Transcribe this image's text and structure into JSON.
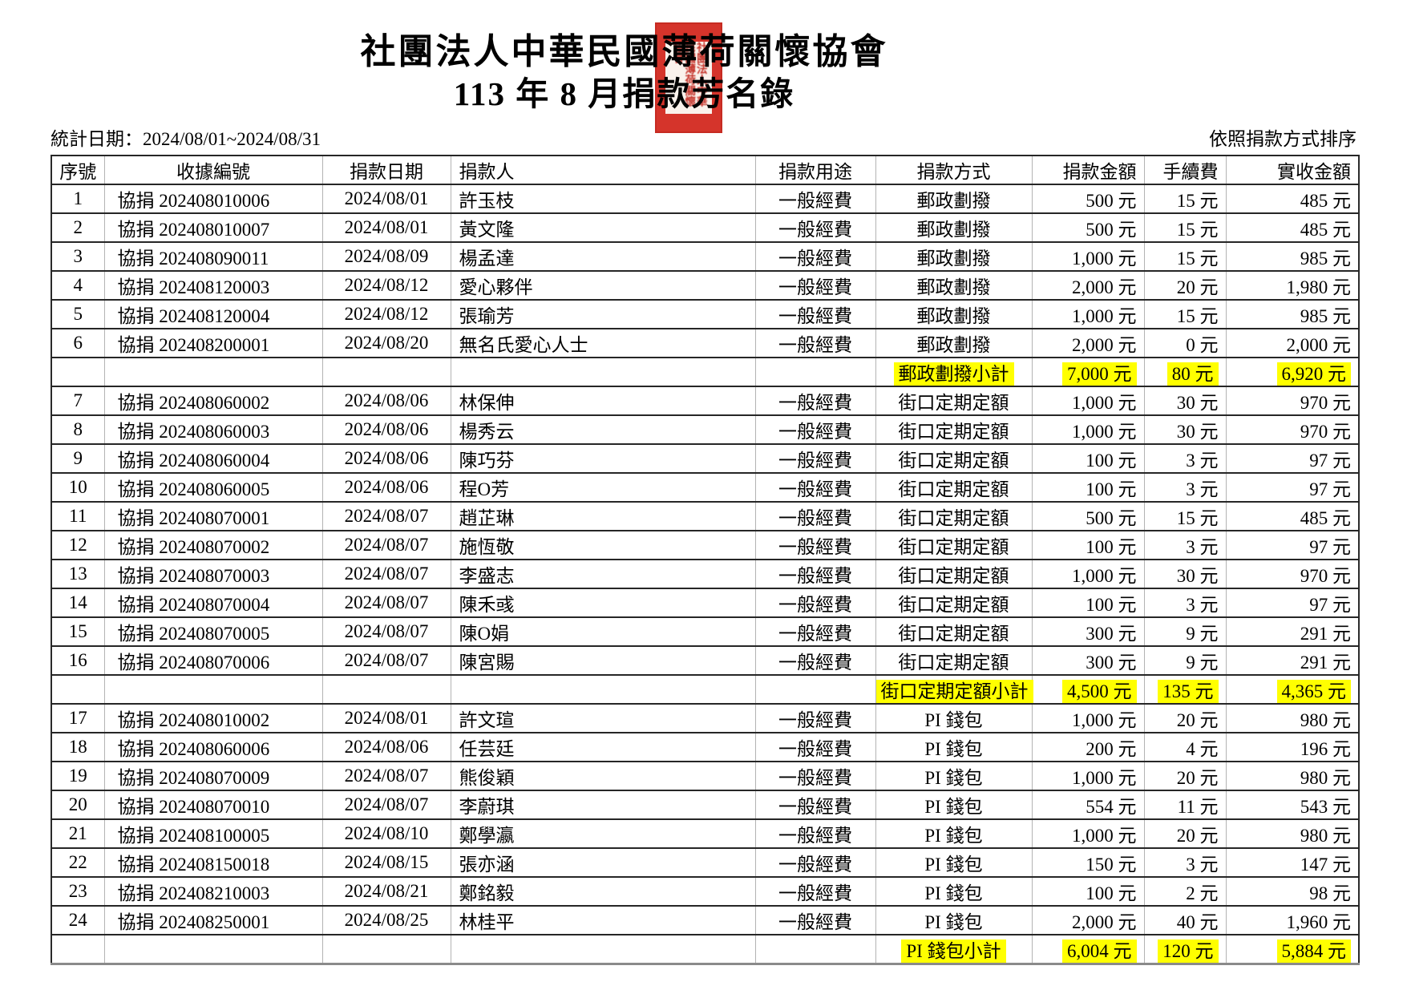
{
  "header": {
    "title": "社團法人中華民國薄荷關懷協會",
    "subtitle": "113 年 8 月捐款芳名錄",
    "stat_date": "統計日期：2024/08/01~2024/08/31",
    "sort_note": "依照捐款方式排序",
    "seal_text": "社團法人中華民國薄荷關懷協會"
  },
  "colors": {
    "subtotal_highlight": "#ffff00",
    "seal_red": "#d5342b"
  },
  "table": {
    "columns": [
      {
        "key": "no",
        "label": "序號",
        "align": "ac"
      },
      {
        "key": "receipt",
        "label": "收據編號",
        "align": "ac"
      },
      {
        "key": "date",
        "label": "捐款日期",
        "align": "ac"
      },
      {
        "key": "donor",
        "label": "捐款人",
        "align": "al2"
      },
      {
        "key": "purpose",
        "label": "捐款用途",
        "align": "ac"
      },
      {
        "key": "method",
        "label": "捐款方式",
        "align": "ac"
      },
      {
        "key": "amount",
        "label": "捐款金額",
        "align": "ar"
      },
      {
        "key": "fee",
        "label": "手續費",
        "align": "ar"
      },
      {
        "key": "net",
        "label": "實收金額",
        "align": "ar"
      }
    ],
    "value_aligns": {
      "no": "ac",
      "receipt": "al",
      "date": "ac",
      "donor": "al2",
      "purpose": "ac",
      "method": "ac",
      "amount": "ar",
      "fee": "ar",
      "net": "ar"
    },
    "rows": [
      {
        "no": "1",
        "receipt": "協捐 202408010006",
        "date": "2024/08/01",
        "donor": "許玉枝",
        "purpose": "一般經費",
        "method": "郵政劃撥",
        "amount": "500 元",
        "fee": "15 元",
        "net": "485 元"
      },
      {
        "no": "2",
        "receipt": "協捐 202408010007",
        "date": "2024/08/01",
        "donor": "黃文隆",
        "purpose": "一般經費",
        "method": "郵政劃撥",
        "amount": "500 元",
        "fee": "15 元",
        "net": "485 元"
      },
      {
        "no": "3",
        "receipt": "協捐 202408090011",
        "date": "2024/08/09",
        "donor": "楊孟達",
        "purpose": "一般經費",
        "method": "郵政劃撥",
        "amount": "1,000 元",
        "fee": "15 元",
        "net": "985 元"
      },
      {
        "no": "4",
        "receipt": "協捐 202408120003",
        "date": "2024/08/12",
        "donor": "愛心夥伴",
        "purpose": "一般經費",
        "method": "郵政劃撥",
        "amount": "2,000 元",
        "fee": "20 元",
        "net": "1,980 元"
      },
      {
        "no": "5",
        "receipt": "協捐 202408120004",
        "date": "2024/08/12",
        "donor": "張瑜芳",
        "purpose": "一般經費",
        "method": "郵政劃撥",
        "amount": "1,000 元",
        "fee": "15 元",
        "net": "985 元"
      },
      {
        "no": "6",
        "receipt": "協捐 202408200001",
        "date": "2024/08/20",
        "donor": "無名氏愛心人士",
        "purpose": "一般經費",
        "method": "郵政劃撥",
        "amount": "2,000 元",
        "fee": "0 元",
        "net": "2,000 元"
      },
      {
        "subtotal": true,
        "label": "郵政劃撥小計",
        "amount": "7,000 元",
        "fee": "80 元",
        "net": "6,920 元"
      },
      {
        "no": "7",
        "receipt": "協捐 202408060002",
        "date": "2024/08/06",
        "donor": "林保伸",
        "purpose": "一般經費",
        "method": "街口定期定額",
        "amount": "1,000 元",
        "fee": "30 元",
        "net": "970 元"
      },
      {
        "no": "8",
        "receipt": "協捐 202408060003",
        "date": "2024/08/06",
        "donor": "楊秀云",
        "purpose": "一般經費",
        "method": "街口定期定額",
        "amount": "1,000 元",
        "fee": "30 元",
        "net": "970 元"
      },
      {
        "no": "9",
        "receipt": "協捐 202408060004",
        "date": "2024/08/06",
        "donor": "陳巧芬",
        "purpose": "一般經費",
        "method": "街口定期定額",
        "amount": "100 元",
        "fee": "3 元",
        "net": "97 元"
      },
      {
        "no": "10",
        "receipt": "協捐 202408060005",
        "date": "2024/08/06",
        "donor": "程O芳",
        "purpose": "一般經費",
        "method": "街口定期定額",
        "amount": "100 元",
        "fee": "3 元",
        "net": "97 元"
      },
      {
        "no": "11",
        "receipt": "協捐 202408070001",
        "date": "2024/08/07",
        "donor": "趙芷琳",
        "purpose": "一般經費",
        "method": "街口定期定額",
        "amount": "500 元",
        "fee": "15 元",
        "net": "485 元"
      },
      {
        "no": "12",
        "receipt": "協捐 202408070002",
        "date": "2024/08/07",
        "donor": "施恆敬",
        "purpose": "一般經費",
        "method": "街口定期定額",
        "amount": "100 元",
        "fee": "3 元",
        "net": "97 元"
      },
      {
        "no": "13",
        "receipt": "協捐 202408070003",
        "date": "2024/08/07",
        "donor": "李盛志",
        "purpose": "一般經費",
        "method": "街口定期定額",
        "amount": "1,000 元",
        "fee": "30 元",
        "net": "970 元"
      },
      {
        "no": "14",
        "receipt": "協捐 202408070004",
        "date": "2024/08/07",
        "donor": "陳禾彧",
        "purpose": "一般經費",
        "method": "街口定期定額",
        "amount": "100 元",
        "fee": "3 元",
        "net": "97 元"
      },
      {
        "no": "15",
        "receipt": "協捐 202408070005",
        "date": "2024/08/07",
        "donor": "陳O娟",
        "purpose": "一般經費",
        "method": "街口定期定額",
        "amount": "300 元",
        "fee": "9 元",
        "net": "291 元"
      },
      {
        "no": "16",
        "receipt": "協捐 202408070006",
        "date": "2024/08/07",
        "donor": "陳宮賜",
        "purpose": "一般經費",
        "method": "街口定期定額",
        "amount": "300 元",
        "fee": "9 元",
        "net": "291 元"
      },
      {
        "subtotal": true,
        "label": "街口定期定額小計",
        "amount": "4,500 元",
        "fee": "135 元",
        "net": "4,365 元"
      },
      {
        "no": "17",
        "receipt": "協捐 202408010002",
        "date": "2024/08/01",
        "donor": "許文瑄",
        "purpose": "一般經費",
        "method": "PI 錢包",
        "amount": "1,000 元",
        "fee": "20 元",
        "net": "980 元"
      },
      {
        "no": "18",
        "receipt": "協捐 202408060006",
        "date": "2024/08/06",
        "donor": "任芸廷",
        "purpose": "一般經費",
        "method": "PI 錢包",
        "amount": "200 元",
        "fee": "4 元",
        "net": "196 元"
      },
      {
        "no": "19",
        "receipt": "協捐 202408070009",
        "date": "2024/08/07",
        "donor": "熊俊穎",
        "purpose": "一般經費",
        "method": "PI 錢包",
        "amount": "1,000 元",
        "fee": "20 元",
        "net": "980 元"
      },
      {
        "no": "20",
        "receipt": "協捐 202408070010",
        "date": "2024/08/07",
        "donor": "李蔚琪",
        "purpose": "一般經費",
        "method": "PI 錢包",
        "amount": "554 元",
        "fee": "11 元",
        "net": "543 元"
      },
      {
        "no": "21",
        "receipt": "協捐 202408100005",
        "date": "2024/08/10",
        "donor": "鄭學瀛",
        "purpose": "一般經費",
        "method": "PI 錢包",
        "amount": "1,000 元",
        "fee": "20 元",
        "net": "980 元"
      },
      {
        "no": "22",
        "receipt": "協捐 202408150018",
        "date": "2024/08/15",
        "donor": "張亦涵",
        "purpose": "一般經費",
        "method": "PI 錢包",
        "amount": "150 元",
        "fee": "3 元",
        "net": "147 元"
      },
      {
        "no": "23",
        "receipt": "協捐 202408210003",
        "date": "2024/08/21",
        "donor": "鄭銘毅",
        "purpose": "一般經費",
        "method": "PI 錢包",
        "amount": "100 元",
        "fee": "2 元",
        "net": "98 元"
      },
      {
        "no": "24",
        "receipt": "協捐 202408250001",
        "date": "2024/08/25",
        "donor": "林桂平",
        "purpose": "一般經費",
        "method": "PI 錢包",
        "amount": "2,000 元",
        "fee": "40 元",
        "net": "1,960 元"
      },
      {
        "subtotal": true,
        "label": "PI 錢包小計",
        "amount": "6,004 元",
        "fee": "120 元",
        "net": "5,884 元"
      }
    ]
  }
}
